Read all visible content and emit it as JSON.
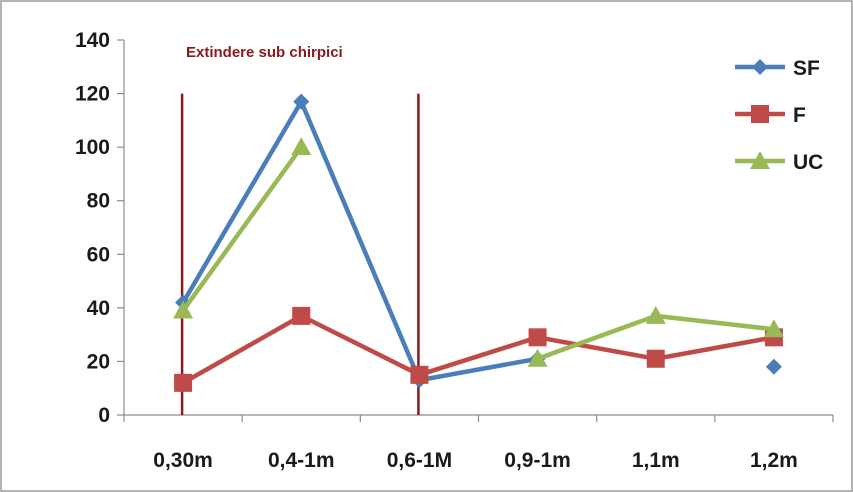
{
  "chart_data": {
    "type": "line",
    "categories": [
      "0,30m",
      "0,4-1m",
      "0,6-1M",
      "0,9-1m",
      "1,1m",
      "1,2m"
    ],
    "ylim": [
      0,
      140
    ],
    "yticks": [
      0,
      20,
      40,
      60,
      80,
      100,
      120,
      140
    ],
    "grid": false,
    "legend_position": "top-right",
    "annotation": "Extindere sub chirpici",
    "series": [
      {
        "name": "SF",
        "color": "#4a7ebb",
        "marker": "diamond",
        "values": [
          42,
          117,
          13,
          21,
          null,
          18
        ]
      },
      {
        "name": "F",
        "color": "#be4b48",
        "marker": "square",
        "values": [
          12,
          37,
          15,
          29,
          21,
          29
        ]
      },
      {
        "name": "UC",
        "color": "#98b954",
        "marker": "triangle",
        "values": [
          39,
          100,
          null,
          21,
          37,
          32
        ]
      }
    ],
    "vlines": {
      "color": "#8b1a1a",
      "range": [
        0,
        120
      ],
      "after_category_index": [
        0,
        2
      ]
    }
  }
}
